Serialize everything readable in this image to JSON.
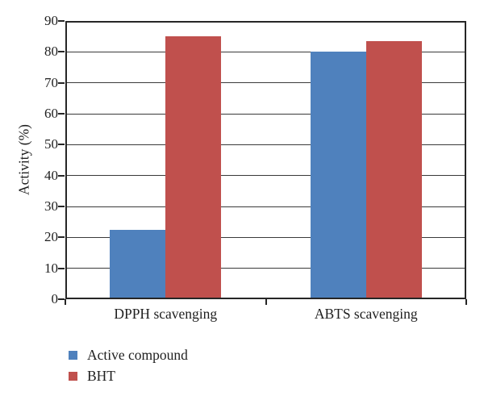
{
  "figure": {
    "background": "#ffffff",
    "text_color": "#1f1f1f",
    "frame_color": "#262626",
    "gridline_color": "#3a3a3a"
  },
  "chart_data": {
    "type": "bar",
    "title": "",
    "categories": [
      "DPPH scavenging",
      "ABTS scavenging"
    ],
    "series": [
      {
        "name": "Active compound",
        "color": "#4f81bd",
        "values": [
          22.5,
          80
        ]
      },
      {
        "name": "BHT",
        "color": "#c0504d",
        "values": [
          85,
          83.5
        ]
      }
    ],
    "xlabel": "",
    "ylabel": "Activity (%)",
    "ylim": [
      0,
      90
    ],
    "yticks": [
      0,
      10,
      20,
      30,
      40,
      50,
      60,
      70,
      80,
      90
    ],
    "grid": "horizontal",
    "legend_position": "bottom-left"
  }
}
